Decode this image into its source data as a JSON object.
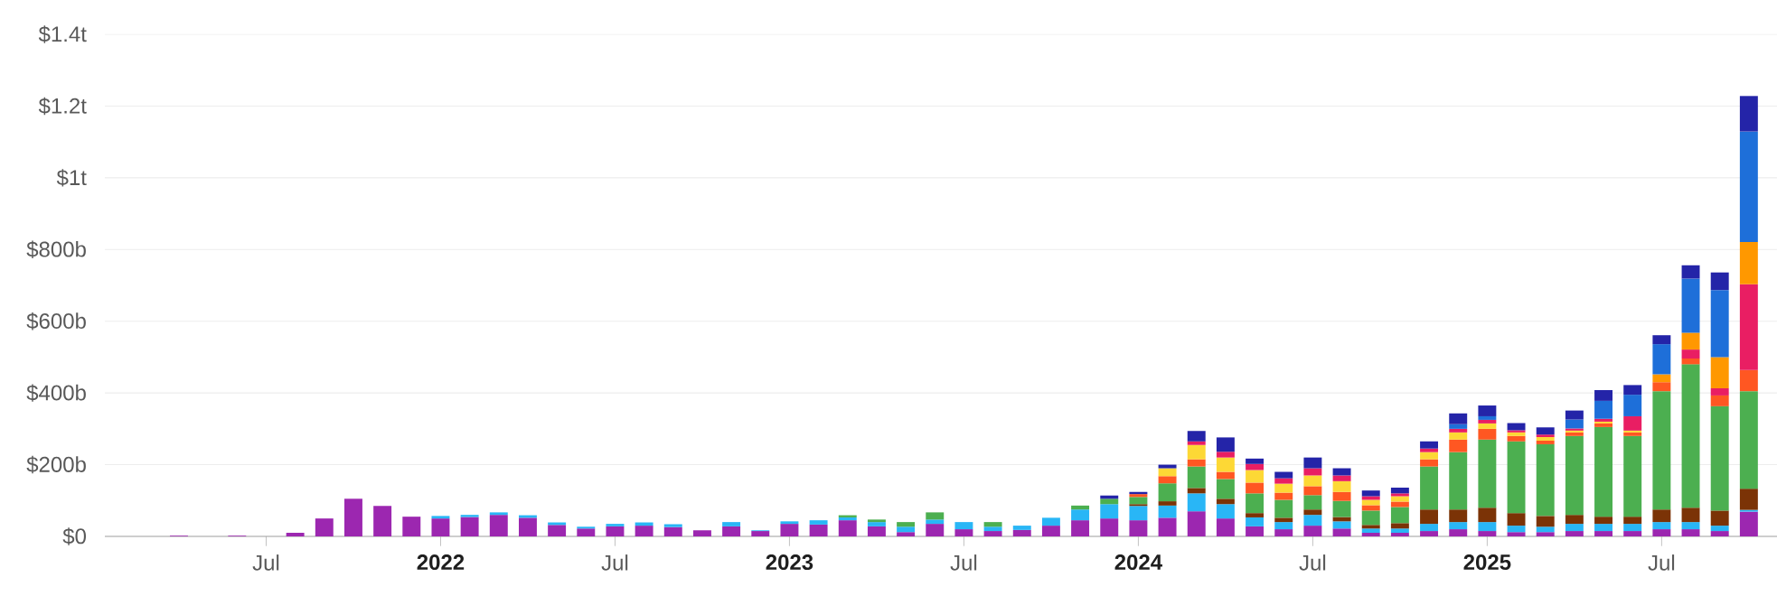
{
  "chart_data": {
    "type": "bar",
    "stacked": true,
    "grid": "y",
    "x": [
      "2021-04",
      "2021-05",
      "2021-06",
      "2021-07",
      "2021-08",
      "2021-09",
      "2021-10",
      "2021-11",
      "2021-12",
      "2022-01",
      "2022-02",
      "2022-03",
      "2022-04",
      "2022-05",
      "2022-06",
      "2022-07",
      "2022-08",
      "2022-09",
      "2022-10",
      "2022-11",
      "2022-12",
      "2023-01",
      "2023-02",
      "2023-03",
      "2023-04",
      "2023-05",
      "2023-06",
      "2023-07",
      "2023-08",
      "2023-09",
      "2023-10",
      "2023-11",
      "2023-12",
      "2024-01",
      "2024-02",
      "2024-03",
      "2024-04",
      "2024-05",
      "2024-06",
      "2024-07",
      "2024-08",
      "2024-09",
      "2024-10",
      "2024-11",
      "2024-12",
      "2025-01",
      "2025-02",
      "2025-03",
      "2025-04",
      "2025-05",
      "2025-06",
      "2025-07",
      "2025-08",
      "2025-09",
      "2025-10"
    ],
    "xlim": [
      "2021-01-15",
      "2025-10-31"
    ],
    "xticks": [
      {
        "value": "2021-07",
        "label": "Jul"
      },
      {
        "value": "2022-01",
        "label": "2022"
      },
      {
        "value": "2022-07",
        "label": "Jul"
      },
      {
        "value": "2023-01",
        "label": "2023"
      },
      {
        "value": "2023-07",
        "label": "Jul"
      },
      {
        "value": "2024-01",
        "label": "2024"
      },
      {
        "value": "2024-07",
        "label": "Jul"
      },
      {
        "value": "2025-01",
        "label": "2025"
      },
      {
        "value": "2025-07",
        "label": "Jul"
      }
    ],
    "ylim": [
      0,
      1400000000000.0
    ],
    "yticks": [
      {
        "value": 0,
        "label": "$0"
      },
      {
        "value": 200000000000.0,
        "label": "$200b"
      },
      {
        "value": 400000000000.0,
        "label": "$400b"
      },
      {
        "value": 600000000000.0,
        "label": "$600b"
      },
      {
        "value": 800000000000.0,
        "label": "$800b"
      },
      {
        "value": 1000000000000.0,
        "label": "$1t"
      },
      {
        "value": 1200000000000.0,
        "label": "$1.2t"
      },
      {
        "value": 1400000000000.0,
        "label": "$1.4t"
      }
    ],
    "series": [
      {
        "color": "#9c27b0",
        "values": [
          2000000000.0,
          null,
          2000000000.0,
          null,
          10000000000.0,
          50000000000.0,
          105000000000.0,
          85000000000.0,
          55000000000.0,
          50000000000.0,
          54000000000.0,
          60000000000.0,
          52000000000.0,
          32000000000.0,
          22000000000.0,
          28000000000.0,
          30000000000.0,
          26000000000.0,
          17000000000.0,
          28000000000.0,
          15000000000.0,
          35000000000.0,
          33000000000.0,
          45000000000.0,
          28000000000.0,
          12000000000.0,
          35000000000.0,
          20000000000.0,
          15000000000.0,
          18000000000.0,
          30000000000.0,
          45000000000.0,
          50000000000.0,
          45000000000.0,
          52000000000.0,
          70000000000.0,
          50000000000.0,
          28000000000.0,
          20000000000.0,
          30000000000.0,
          22000000000.0,
          10000000000.0,
          10000000000.0,
          15000000000.0,
          20000000000.0,
          15000000000.0,
          12000000000.0,
          12000000000.0,
          15000000000.0,
          15000000000.0,
          15000000000.0,
          20000000000.0,
          20000000000.0,
          15000000000.0,
          69000000000.0
        ]
      },
      {
        "color": "#29b6f6",
        "values": [
          null,
          null,
          null,
          null,
          null,
          null,
          null,
          null,
          null,
          7000000000.0,
          6000000000.0,
          7000000000.0,
          7000000000.0,
          7000000000.0,
          5000000000.0,
          7000000000.0,
          9000000000.0,
          8000000000.0,
          null,
          12000000000.0,
          2000000000.0,
          7000000000.0,
          12000000000.0,
          8000000000.0,
          12000000000.0,
          15000000000.0,
          12000000000.0,
          20000000000.0,
          12000000000.0,
          12000000000.0,
          22000000000.0,
          30000000000.0,
          40000000000.0,
          40000000000.0,
          34000000000.0,
          50000000000.0,
          40000000000.0,
          25000000000.0,
          20000000000.0,
          30000000000.0,
          20000000000.0,
          12000000000.0,
          12000000000.0,
          20000000000.0,
          20000000000.0,
          25000000000.0,
          18000000000.0,
          15000000000.0,
          20000000000.0,
          20000000000.0,
          20000000000.0,
          20000000000.0,
          20000000000.0,
          15000000000.0,
          5000000000.0
        ]
      },
      {
        "color": "#7b3306",
        "values": [
          null,
          null,
          null,
          null,
          null,
          null,
          null,
          null,
          null,
          null,
          null,
          null,
          null,
          null,
          null,
          null,
          null,
          null,
          null,
          null,
          null,
          null,
          null,
          null,
          null,
          null,
          null,
          null,
          null,
          null,
          null,
          null,
          null,
          5000000000.0,
          12000000000.0,
          15000000000.0,
          15000000000.0,
          12000000000.0,
          12000000000.0,
          15000000000.0,
          12000000000.0,
          10000000000.0,
          15000000000.0,
          40000000000.0,
          35000000000.0,
          40000000000.0,
          35000000000.0,
          30000000000.0,
          25000000000.0,
          20000000000.0,
          20000000000.0,
          35000000000.0,
          40000000000.0,
          42000000000.0,
          59000000000.0
        ]
      },
      {
        "color": "#4caf50",
        "values": [
          null,
          null,
          null,
          null,
          null,
          null,
          null,
          null,
          null,
          null,
          null,
          null,
          null,
          null,
          null,
          null,
          null,
          null,
          null,
          null,
          null,
          null,
          null,
          6000000000.0,
          7000000000.0,
          13000000000.0,
          20000000000.0,
          null,
          13000000000.0,
          null,
          null,
          11000000000.0,
          15000000000.0,
          20000000000.0,
          50000000000.0,
          60000000000.0,
          55000000000.0,
          55000000000.0,
          50000000000.0,
          40000000000.0,
          45000000000.0,
          40000000000.0,
          45000000000.0,
          120000000000.0,
          160000000000.0,
          190000000000.0,
          200000000000.0,
          200000000000.0,
          220000000000.0,
          250000000000.0,
          225000000000.0,
          330000000000.0,
          400000000000.0,
          291000000000.0,
          272000000000.0
        ]
      },
      {
        "color": "#ff5722",
        "values": [
          null,
          null,
          null,
          null,
          null,
          null,
          null,
          null,
          null,
          null,
          null,
          null,
          null,
          null,
          null,
          null,
          null,
          null,
          null,
          null,
          null,
          null,
          null,
          null,
          null,
          null,
          null,
          null,
          null,
          null,
          null,
          null,
          null,
          8000000000.0,
          20000000000.0,
          20000000000.0,
          20000000000.0,
          30000000000.0,
          20000000000.0,
          25000000000.0,
          25000000000.0,
          15000000000.0,
          15000000000.0,
          20000000000.0,
          35000000000.0,
          30000000000.0,
          15000000000.0,
          10000000000.0,
          10000000000.0,
          10000000000.0,
          10000000000.0,
          25000000000.0,
          16000000000.0,
          30000000000.0,
          59000000000.0
        ]
      },
      {
        "color": "#fdd835",
        "values": [
          null,
          null,
          null,
          null,
          null,
          null,
          null,
          null,
          null,
          null,
          null,
          null,
          null,
          null,
          null,
          null,
          null,
          null,
          null,
          null,
          null,
          null,
          null,
          null,
          null,
          null,
          null,
          null,
          null,
          null,
          null,
          null,
          null,
          null,
          22000000000.0,
          40000000000.0,
          40000000000.0,
          35000000000.0,
          25000000000.0,
          30000000000.0,
          30000000000.0,
          15000000000.0,
          15000000000.0,
          20000000000.0,
          20000000000.0,
          15000000000.0,
          10000000000.0,
          10000000000.0,
          5000000000.0,
          5000000000.0,
          5000000000.0,
          null,
          null,
          null,
          null
        ]
      },
      {
        "color": "#e91e63",
        "values": [
          null,
          null,
          null,
          null,
          null,
          null,
          null,
          null,
          null,
          null,
          null,
          null,
          null,
          null,
          null,
          null,
          null,
          null,
          null,
          null,
          null,
          null,
          null,
          null,
          null,
          null,
          null,
          null,
          null,
          null,
          null,
          null,
          null,
          null,
          null,
          10000000000.0,
          16000000000.0,
          17000000000.0,
          15000000000.0,
          20000000000.0,
          16000000000.0,
          10000000000.0,
          8000000000.0,
          10000000000.0,
          10000000000.0,
          10000000000.0,
          6000000000.0,
          7000000000.0,
          6000000000.0,
          8000000000.0,
          40000000000.0,
          null,
          25000000000.0,
          20000000000.0,
          239000000000.0
        ]
      },
      {
        "color": "#ff9800",
        "values": [
          null,
          null,
          null,
          null,
          null,
          null,
          null,
          null,
          null,
          null,
          null,
          null,
          null,
          null,
          null,
          null,
          null,
          null,
          null,
          null,
          null,
          null,
          null,
          null,
          null,
          null,
          null,
          null,
          null,
          null,
          null,
          null,
          null,
          null,
          null,
          null,
          null,
          null,
          null,
          null,
          null,
          null,
          null,
          null,
          null,
          null,
          null,
          null,
          null,
          null,
          null,
          22000000000.0,
          47000000000.0,
          87000000000.0,
          118000000000.0
        ]
      },
      {
        "color": "#1e6fd9",
        "values": [
          null,
          null,
          null,
          null,
          null,
          null,
          null,
          null,
          null,
          null,
          null,
          null,
          null,
          null,
          null,
          null,
          null,
          null,
          null,
          null,
          null,
          null,
          null,
          null,
          null,
          null,
          null,
          null,
          null,
          null,
          null,
          null,
          null,
          null,
          null,
          null,
          null,
          null,
          null,
          null,
          null,
          null,
          null,
          null,
          13000000000.0,
          10000000000.0,
          null,
          null,
          25000000000.0,
          50000000000.0,
          60000000000.0,
          84000000000.0,
          151000000000.0,
          187000000000.0,
          308000000000.0
        ]
      },
      {
        "color": "#2424a8",
        "values": [
          null,
          null,
          null,
          null,
          null,
          null,
          null,
          null,
          null,
          null,
          null,
          null,
          null,
          null,
          null,
          null,
          null,
          null,
          null,
          null,
          null,
          null,
          null,
          null,
          null,
          null,
          null,
          null,
          null,
          null,
          null,
          null,
          9000000000.0,
          6000000000.0,
          10000000000.0,
          29000000000.0,
          40000000000.0,
          15000000000.0,
          18000000000.0,
          30000000000.0,
          20000000000.0,
          16000000000.0,
          16000000000.0,
          20000000000.0,
          30000000000.0,
          30000000000.0,
          20000000000.0,
          20000000000.0,
          25000000000.0,
          30000000000.0,
          27000000000.0,
          25000000000.0,
          37000000000.0,
          49000000000.0,
          99000000000.0
        ]
      }
    ]
  }
}
